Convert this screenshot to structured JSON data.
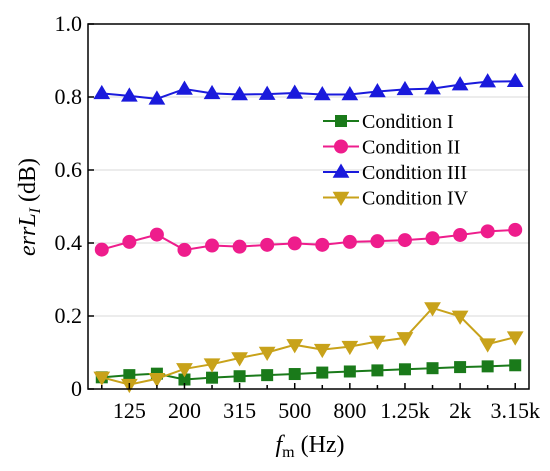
{
  "chart_data": {
    "type": "line",
    "title": "",
    "x": [
      "100",
      "125",
      "160",
      "200",
      "250",
      "315",
      "400",
      "500",
      "630",
      "800",
      "1k",
      "1.25k",
      "1.6k",
      "2k",
      "2.5k",
      "3.15k"
    ],
    "x_tick_labels": [
      "125",
      "200",
      "315",
      "500",
      "800",
      "1.25k",
      "2k",
      "3.15k"
    ],
    "y_tick_labels": [
      "0",
      "0.2",
      "0.4",
      "0.6",
      "0.8",
      "1.0"
    ],
    "ylim": [
      0,
      1.0
    ],
    "xlabel_main": "f",
    "xlabel_sub": "m",
    "xlabel_unit": " (Hz)",
    "ylabel_main": "errL",
    "ylabel_sub": "I",
    "ylabel_unit": " (dB)",
    "grid": "horizontal",
    "legend_position": "center-right",
    "series": [
      {
        "name": "Condition I",
        "color": "#1a7a1a",
        "marker": "square",
        "values": [
          0.032,
          0.038,
          0.042,
          0.026,
          0.031,
          0.035,
          0.038,
          0.041,
          0.045,
          0.048,
          0.051,
          0.054,
          0.057,
          0.06,
          0.062,
          0.065
        ]
      },
      {
        "name": "Condition II",
        "color": "#ee1d8c",
        "marker": "circle",
        "values": [
          0.382,
          0.403,
          0.423,
          0.381,
          0.393,
          0.39,
          0.395,
          0.399,
          0.395,
          0.403,
          0.405,
          0.408,
          0.413,
          0.422,
          0.432,
          0.436
        ]
      },
      {
        "name": "Condition III",
        "color": "#1a1adc",
        "marker": "triangle-up",
        "values": [
          0.81,
          0.803,
          0.795,
          0.822,
          0.81,
          0.807,
          0.808,
          0.811,
          0.807,
          0.807,
          0.815,
          0.821,
          0.823,
          0.834,
          0.842,
          0.843
        ]
      },
      {
        "name": "Condition IV",
        "color": "#c8a21a",
        "marker": "triangle-down",
        "values": [
          0.032,
          0.012,
          0.028,
          0.055,
          0.068,
          0.085,
          0.1,
          0.121,
          0.108,
          0.116,
          0.13,
          0.14,
          0.222,
          0.199,
          0.123,
          0.142
        ]
      }
    ]
  }
}
